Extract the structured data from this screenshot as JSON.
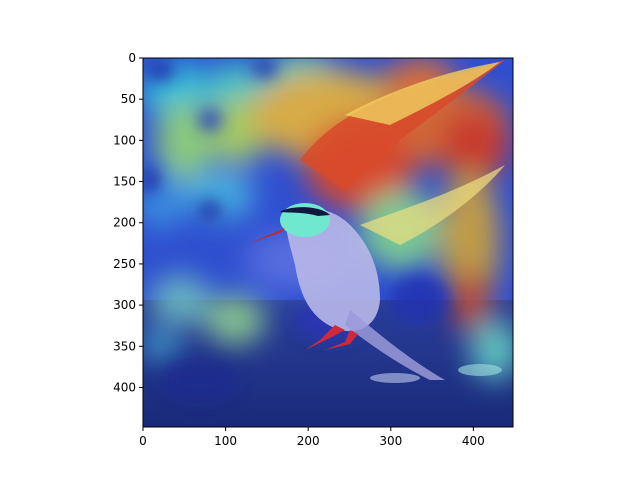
{
  "figure": {
    "image_alt": "Grad-CAM style heatmap overlaid on a photo of a tern with spread wings landing on water",
    "colormap": "jet",
    "x_axis": {
      "ticks": [
        0,
        100,
        200,
        300,
        400
      ],
      "range": [
        0,
        448
      ]
    },
    "y_axis": {
      "ticks": [
        0,
        50,
        100,
        150,
        200,
        250,
        300,
        350,
        400
      ],
      "range": [
        0,
        448
      ]
    }
  }
}
